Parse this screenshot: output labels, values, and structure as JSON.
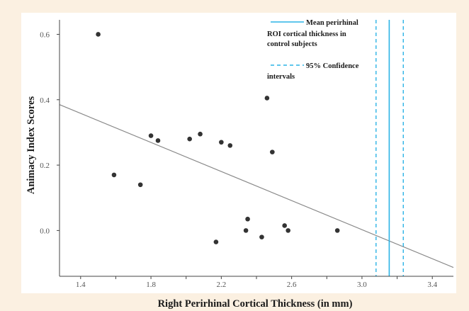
{
  "chart_data": {
    "type": "scatter",
    "xlabel": "Right Perirhinal Cortical Thickness (in mm)",
    "ylabel": "Animacy Index Scores",
    "xlim": [
      1.28,
      3.52
    ],
    "ylim": [
      -0.14,
      0.64
    ],
    "x_ticks": [
      "1.4",
      "1.6",
      "1.8",
      "2.0",
      "2.2",
      "2.4",
      "2.6",
      "2.8",
      "3.0",
      "3.2",
      "3.4"
    ],
    "x_tick_values": [
      1.4,
      1.6,
      1.8,
      2.0,
      2.2,
      2.4,
      2.6,
      2.8,
      3.0,
      3.2,
      3.4
    ],
    "x_tick_labels_shown": [
      1.4,
      1.8,
      2.2,
      2.6,
      3.0,
      3.4
    ],
    "y_ticks": [
      "0.0",
      "0.2",
      "0.4",
      "0.6"
    ],
    "y_tick_values": [
      0.0,
      0.2,
      0.4,
      0.6
    ],
    "grid": false,
    "points": [
      {
        "x": 1.5,
        "y": 0.6
      },
      {
        "x": 1.59,
        "y": 0.17
      },
      {
        "x": 1.74,
        "y": 0.14
      },
      {
        "x": 1.8,
        "y": 0.29
      },
      {
        "x": 1.84,
        "y": 0.275
      },
      {
        "x": 2.02,
        "y": 0.28
      },
      {
        "x": 2.08,
        "y": 0.295
      },
      {
        "x": 2.2,
        "y": 0.27
      },
      {
        "x": 2.25,
        "y": 0.26
      },
      {
        "x": 2.17,
        "y": -0.035
      },
      {
        "x": 2.34,
        "y": 0.0
      },
      {
        "x": 2.35,
        "y": 0.035
      },
      {
        "x": 2.43,
        "y": -0.02
      },
      {
        "x": 2.46,
        "y": 0.405
      },
      {
        "x": 2.49,
        "y": 0.24
      },
      {
        "x": 2.56,
        "y": 0.015
      },
      {
        "x": 2.58,
        "y": 0.0
      },
      {
        "x": 2.86,
        "y": 0.0
      }
    ],
    "fit_line": {
      "x": [
        1.28,
        3.52
      ],
      "y": [
        0.385,
        -0.113
      ]
    },
    "mean_line": {
      "x": 3.155
    },
    "ci_lines": {
      "x": [
        3.08,
        3.235
      ]
    },
    "legend": {
      "placement": "top-right",
      "mean_lines": [
        "Mean perirhinal",
        "ROI cortical thickness in",
        "control subjects"
      ],
      "ci_lines": [
        "95% Confidence",
        "intervals"
      ]
    },
    "colors": {
      "background": "#fbf0e1",
      "plot_area": "#ffffff",
      "points": "#333333",
      "fit_line": "#888888",
      "mean_line": "#2bb3e6",
      "ci_line": "#2bb3e6",
      "axis": "#444444"
    }
  }
}
